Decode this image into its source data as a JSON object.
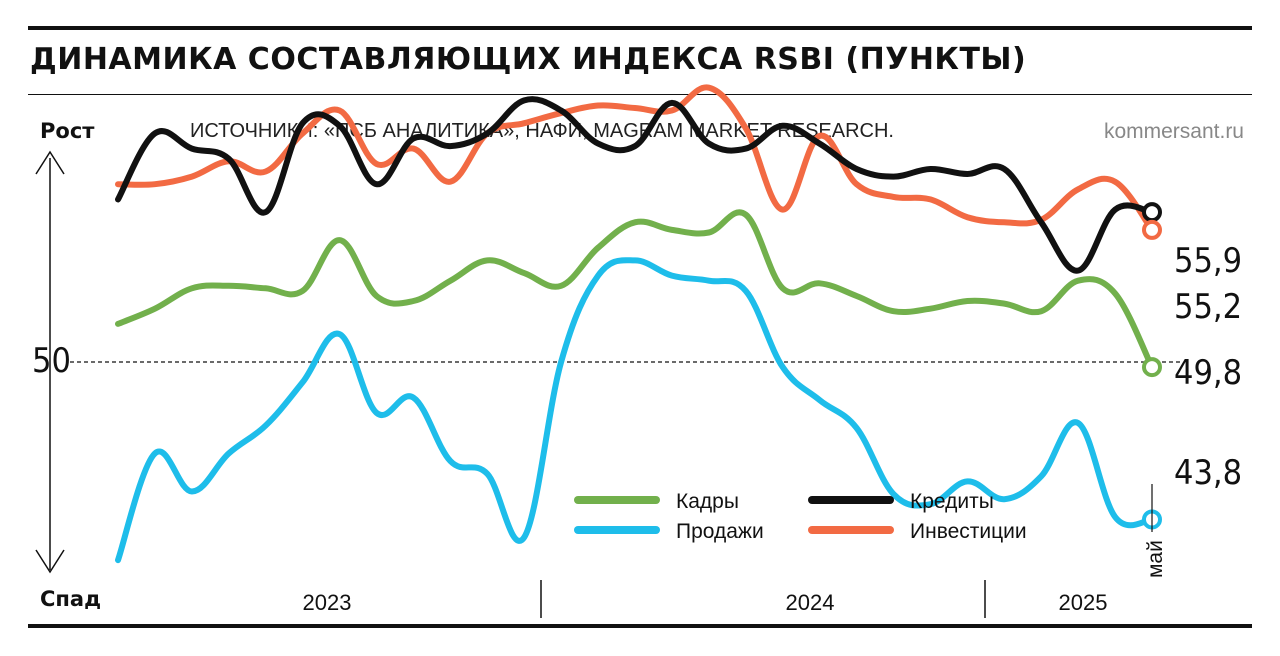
{
  "header": {
    "title": "ДИНАМИКА СОСТАВЛЯЮЩИХ ИНДЕКСА RSBI (ПУНКТЫ)",
    "source": "ИСТОЧНИКИ: «ПСБ АНАЛИТИКА», НАФИ, MAGRAM MARKET RESEARCH.",
    "brand": "kommersant.ru"
  },
  "colors": {
    "kadry": "#72b04c",
    "prodazhi": "#1ebdea",
    "kredity": "#111111",
    "investicii": "#f26a43"
  },
  "chart_data": {
    "type": "line",
    "title": "ДИНАМИКА СОСТАВЛЯЮЩИХ ИНДЕКСА RSBI (ПУНКТЫ)",
    "y_axis": {
      "top_label": "Рост",
      "bottom_label": "Спад",
      "reference_value": 50,
      "reference_label": "50"
    },
    "x_axis": {
      "years": [
        "2023",
        "2024",
        "2025"
      ],
      "last_point_label": "май"
    },
    "x": [
      "2023-01",
      "2023-02",
      "2023-03",
      "2023-04",
      "2023-05",
      "2023-06",
      "2023-07",
      "2023-08",
      "2023-09",
      "2023-10",
      "2023-11",
      "2023-12",
      "2024-01",
      "2024-02",
      "2024-03",
      "2024-04",
      "2024-05",
      "2024-06",
      "2024-07",
      "2024-08",
      "2024-09",
      "2024-10",
      "2024-11",
      "2024-12",
      "2025-01",
      "2025-02",
      "2025-03",
      "2025-04",
      "2025-05"
    ],
    "series": [
      {
        "name": "Кадры",
        "key": "kadry",
        "color": "#72b04c",
        "last_label": "49,8",
        "values": [
          51.5,
          52.1,
          52.9,
          53.0,
          52.9,
          52.8,
          54.8,
          52.6,
          52.4,
          53.2,
          54.0,
          53.5,
          53.0,
          54.5,
          55.5,
          55.2,
          55.1,
          55.8,
          52.9,
          53.1,
          52.6,
          52.0,
          52.1,
          52.4,
          52.3,
          52.0,
          53.2,
          52.7,
          49.8
        ]
      },
      {
        "name": "Продажи",
        "key": "prodazhi",
        "color": "#1ebdea",
        "last_label": "43,8",
        "values": [
          42.2,
          46.4,
          44.9,
          46.4,
          47.5,
          49.2,
          51.1,
          48.0,
          48.6,
          46.1,
          45.6,
          43.1,
          50.0,
          53.4,
          54.0,
          53.4,
          53.2,
          52.8,
          49.8,
          48.5,
          47.4,
          44.8,
          44.4,
          45.3,
          44.6,
          45.5,
          47.6,
          43.9,
          43.8
        ]
      },
      {
        "name": "Кредиты",
        "key": "kredity",
        "color": "#111111",
        "last_label": "55,9",
        "values": [
          56.4,
          59.0,
          58.4,
          58.0,
          55.9,
          59.4,
          59.3,
          57.0,
          58.8,
          58.5,
          59.0,
          60.3,
          59.9,
          58.6,
          58.5,
          60.2,
          58.6,
          58.4,
          59.3,
          58.6,
          57.6,
          57.3,
          57.6,
          57.4,
          57.6,
          55.5,
          53.6,
          56.0,
          55.9
        ]
      },
      {
        "name": "Инвестиции",
        "key": "investicii",
        "color": "#f26a43",
        "last_label": "55,2",
        "values": [
          57.0,
          57.0,
          57.3,
          57.9,
          57.5,
          59.0,
          59.9,
          57.8,
          58.4,
          57.1,
          59.0,
          59.4,
          59.8,
          60.1,
          60.0,
          59.9,
          60.8,
          59.2,
          56.0,
          58.9,
          57.0,
          56.5,
          56.4,
          55.7,
          55.5,
          55.6,
          56.8,
          57.1,
          55.2
        ]
      }
    ],
    "legend": [
      "Кадры",
      "Кредиты",
      "Продажи",
      "Инвестиции"
    ],
    "grid": false
  }
}
